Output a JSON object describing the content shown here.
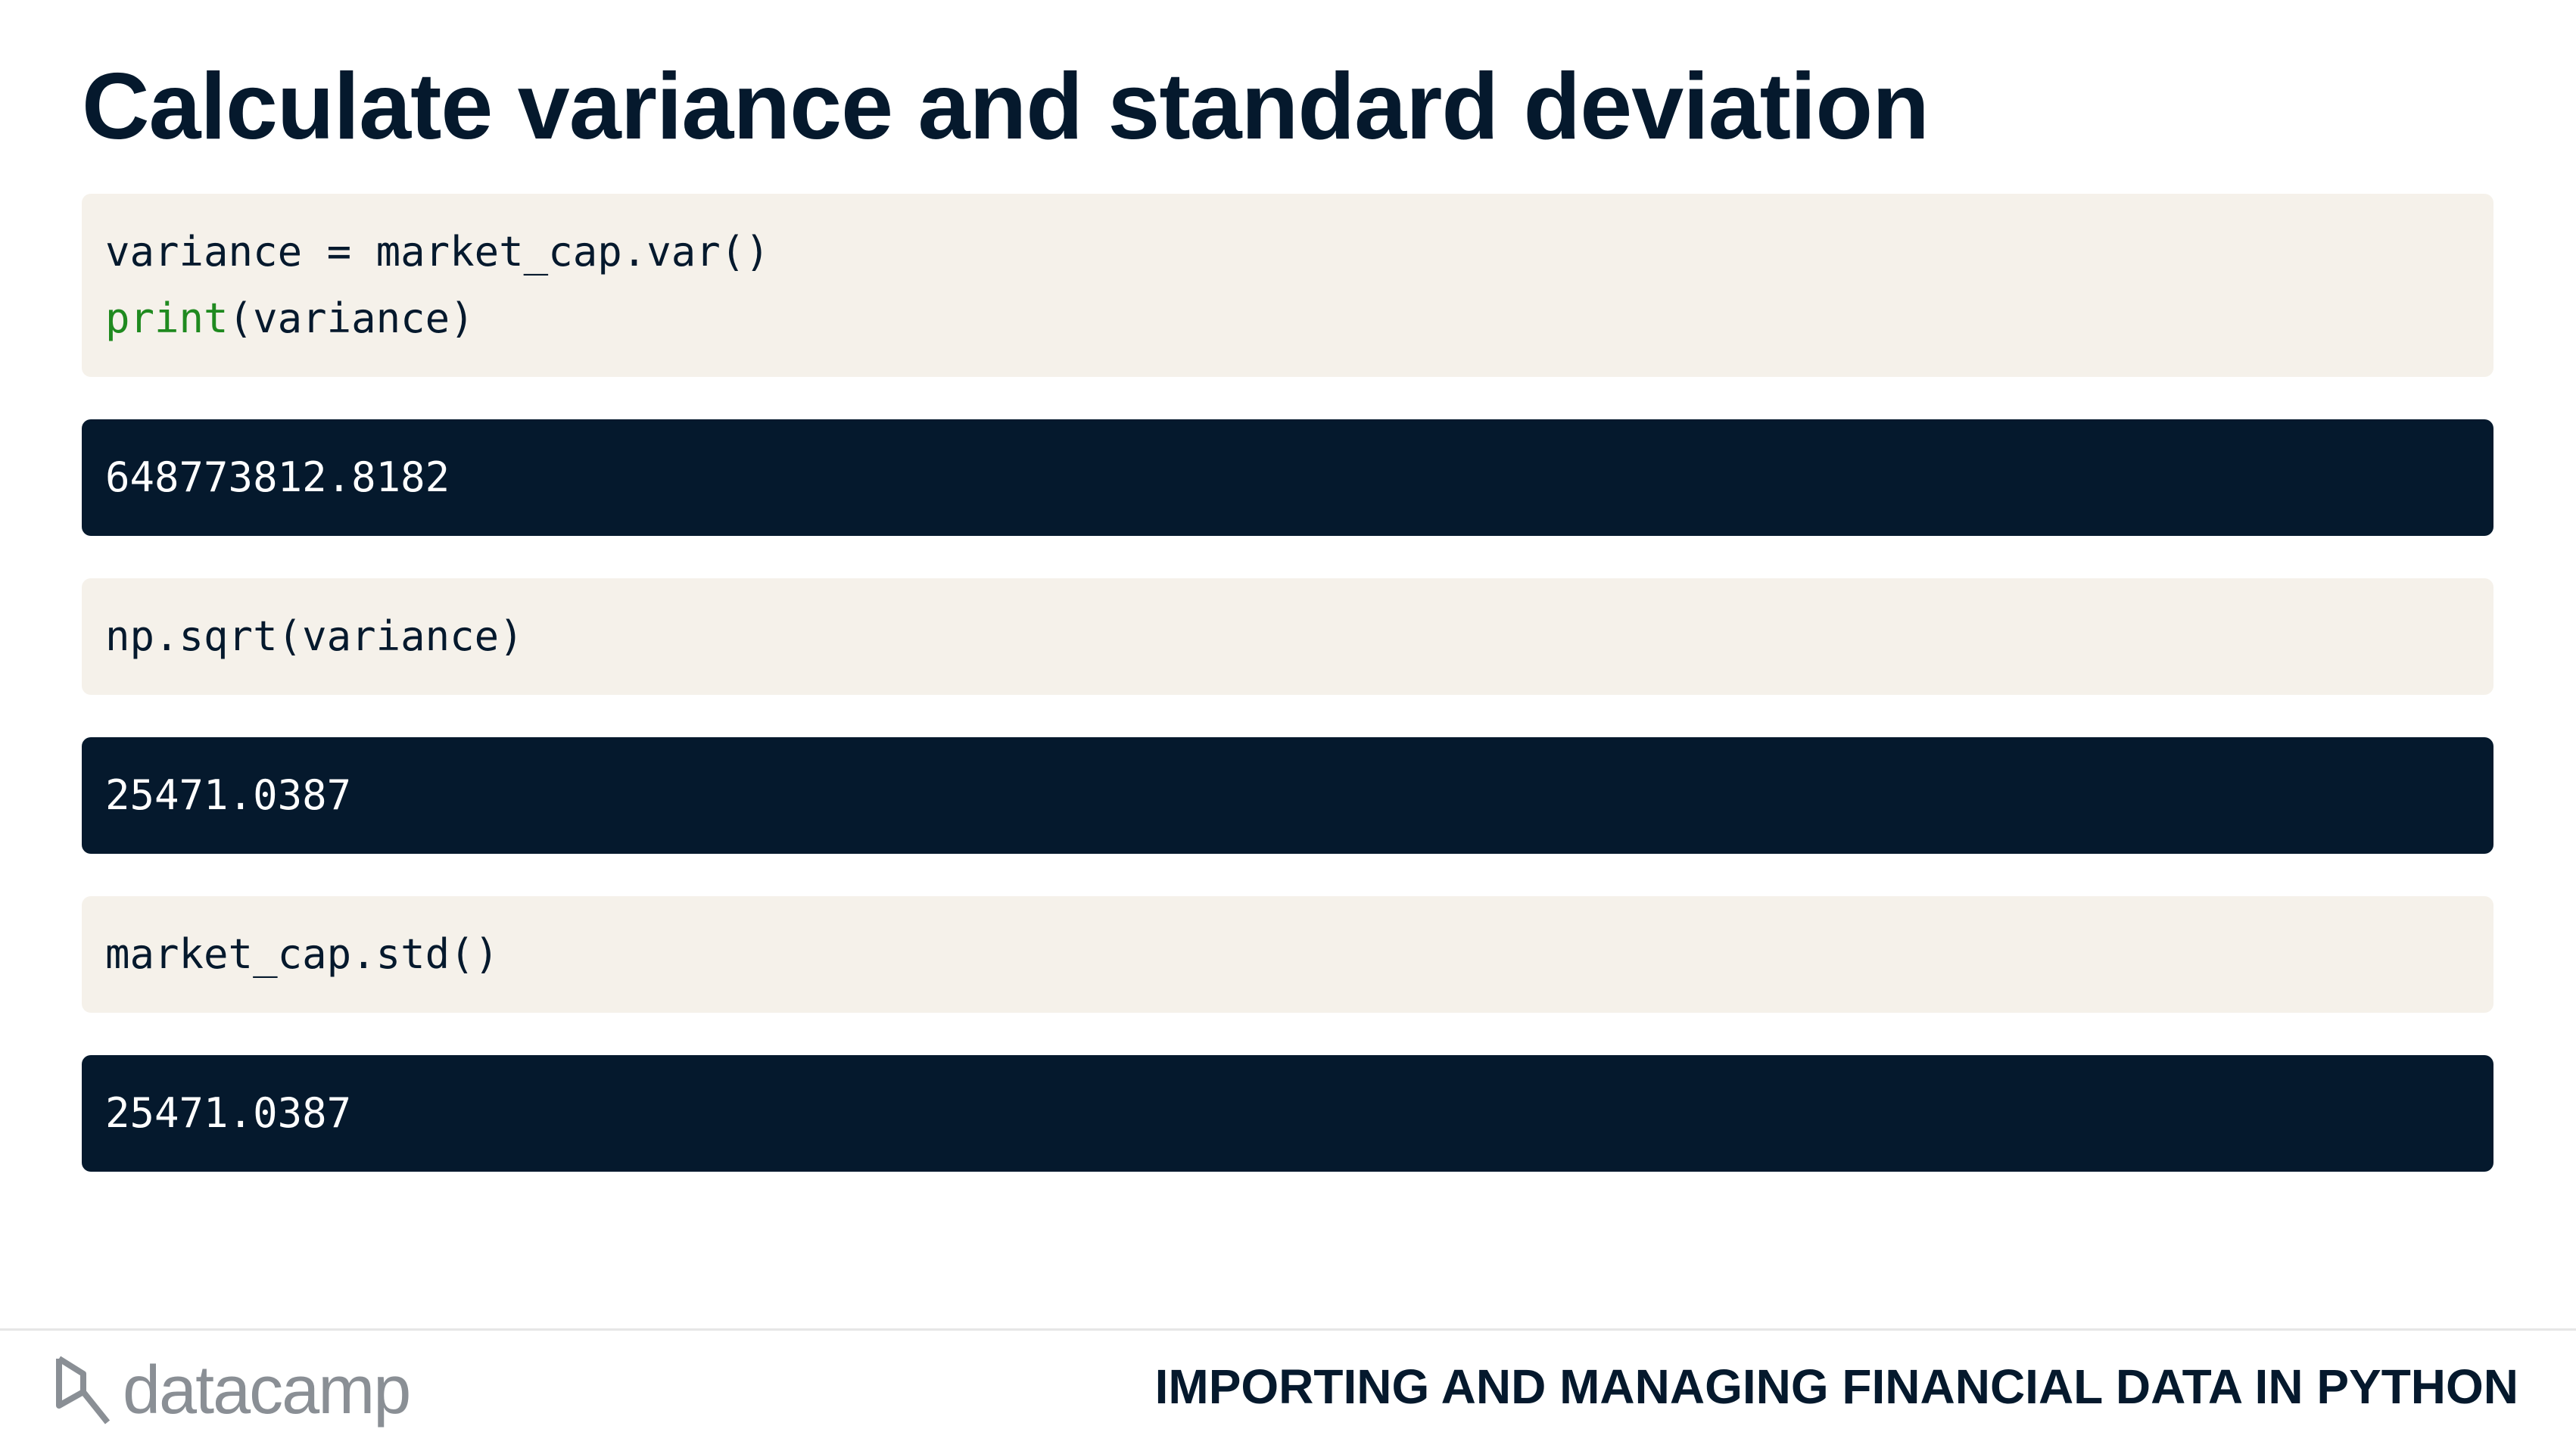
{
  "title": "Calculate variance and standard deviation",
  "blocks": [
    {
      "type": "code",
      "lines": [
        [
          {
            "text": "variance = market_cap.var()"
          }
        ],
        [
          {
            "text": "print",
            "color": "#1f8a1f"
          },
          {
            "text": "(variance)"
          }
        ]
      ]
    },
    {
      "type": "output",
      "lines": [
        [
          {
            "text": "648773812.8182"
          }
        ]
      ]
    },
    {
      "type": "code",
      "lines": [
        [
          {
            "text": "np.sqrt(variance)"
          }
        ]
      ]
    },
    {
      "type": "output",
      "lines": [
        [
          {
            "text": "25471.0387"
          }
        ]
      ]
    },
    {
      "type": "code",
      "lines": [
        [
          {
            "text": "market_cap.std()"
          }
        ]
      ]
    },
    {
      "type": "output",
      "lines": [
        [
          {
            "text": "25471.0387"
          }
        ]
      ]
    }
  ],
  "footer": {
    "logo": "datacamp",
    "course": "IMPORTING AND MANAGING FINANCIAL DATA IN PYTHON"
  }
}
